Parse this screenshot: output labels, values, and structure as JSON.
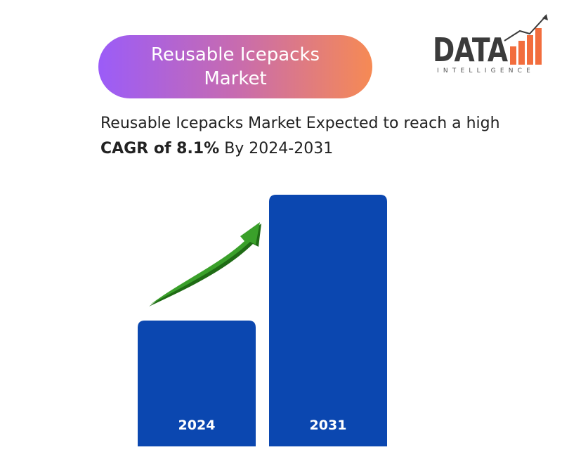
{
  "header": {
    "title": "Reusable Icepacks Market",
    "logo_main": "DATA",
    "logo_sub": "INTELLIGENCE"
  },
  "headline": {
    "prefix": "Reusable Icepacks Market Expected to reach a high ",
    "highlight": "CAGR of 8.1%",
    "suffix": " By 2024-2031"
  },
  "colors": {
    "bar": "#0b47b0",
    "arrow": "#3aa02a",
    "gradient_start": "#9b5cf8",
    "gradient_end": "#f68a54"
  },
  "chart_data": {
    "type": "bar",
    "categories": [
      "2024",
      "2031"
    ],
    "values": [
      1.0,
      2.0
    ],
    "title": "",
    "xlabel": "",
    "ylabel": "",
    "annotation": "growth-arrow"
  }
}
